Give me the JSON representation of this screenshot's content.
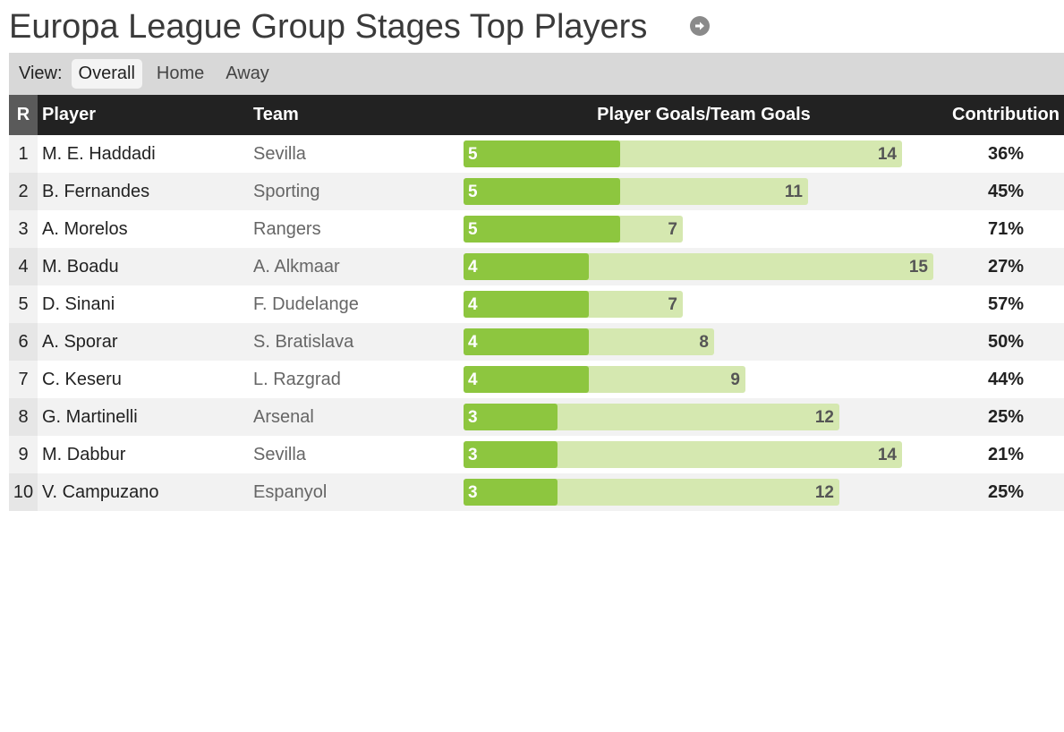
{
  "title": "Europa League Group Stages Top Players",
  "view": {
    "label": "View:",
    "tabs": [
      "Overall",
      "Home",
      "Away"
    ],
    "active": "Overall"
  },
  "table": {
    "headers": {
      "rank": "R",
      "player": "Player",
      "team": "Team",
      "goals": "Player Goals/Team Goals",
      "contribution": "Contribution"
    },
    "rows": [
      {
        "rank": "1",
        "player": "M. E. Haddadi",
        "team": "Sevilla",
        "player_goals": 5,
        "team_goals": 14,
        "contribution": "36%"
      },
      {
        "rank": "2",
        "player": "B. Fernandes",
        "team": "Sporting",
        "player_goals": 5,
        "team_goals": 11,
        "contribution": "45%"
      },
      {
        "rank": "3",
        "player": "A. Morelos",
        "team": "Rangers",
        "player_goals": 5,
        "team_goals": 7,
        "contribution": "71%"
      },
      {
        "rank": "4",
        "player": "M. Boadu",
        "team": "A. Alkmaar",
        "player_goals": 4,
        "team_goals": 15,
        "contribution": "27%"
      },
      {
        "rank": "5",
        "player": "D. Sinani",
        "team": "F. Dudelange",
        "player_goals": 4,
        "team_goals": 7,
        "contribution": "57%"
      },
      {
        "rank": "6",
        "player": "A. Sporar",
        "team": "S. Bratislava",
        "player_goals": 4,
        "team_goals": 8,
        "contribution": "50%"
      },
      {
        "rank": "7",
        "player": "C. Keseru",
        "team": "L. Razgrad",
        "player_goals": 4,
        "team_goals": 9,
        "contribution": "44%"
      },
      {
        "rank": "8",
        "player": "G. Martinelli",
        "team": "Arsenal",
        "player_goals": 3,
        "team_goals": 12,
        "contribution": "25%"
      },
      {
        "rank": "9",
        "player": "M. Dabbur",
        "team": "Sevilla",
        "player_goals": 3,
        "team_goals": 14,
        "contribution": "21%"
      },
      {
        "rank": "10",
        "player": "V. Campuzano",
        "team": "Espanyol",
        "player_goals": 3,
        "team_goals": 12,
        "contribution": "25%"
      }
    ]
  },
  "colors": {
    "player_bar": "#8dc63f",
    "team_bar": "#d5e8b0",
    "header_bg": "#222222",
    "view_bar_bg": "#d8d8d8"
  },
  "icons": {
    "nav": "arrow-circle-right-icon"
  }
}
